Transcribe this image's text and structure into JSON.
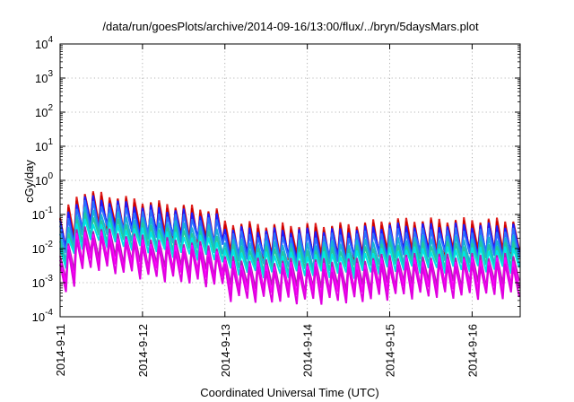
{
  "chart_data": {
    "type": "line",
    "title": "/data/run/goesPlots/archive/2014-09-16/13:00/flux/../bryn/5daysMars.plot",
    "xlabel": "Coordinated Universal Time (UTC)",
    "ylabel": "cGy/day",
    "yscale": "log",
    "ylim": [
      0.0001,
      10000
    ],
    "xlim": [
      "2014-09-11",
      "2014-09-16 14:00"
    ],
    "x_ticks": [
      "2014-9-11",
      "2014-9-12",
      "2014-9-13",
      "2014-9-14",
      "2014-9-15",
      "2014-9-16"
    ],
    "y_ticks": [
      {
        "value": 0.0001,
        "base": "10",
        "exp": "-4"
      },
      {
        "value": 0.001,
        "base": "10",
        "exp": "-3"
      },
      {
        "value": 0.01,
        "base": "10",
        "exp": "-2"
      },
      {
        "value": 0.1,
        "base": "10",
        "exp": "-1"
      },
      {
        "value": 1,
        "base": "10",
        "exp": "0"
      },
      {
        "value": 10,
        "base": "10",
        "exp": "1"
      },
      {
        "value": 100,
        "base": "10",
        "exp": "2"
      },
      {
        "value": 1000,
        "base": "10",
        "exp": "3"
      },
      {
        "value": 10000,
        "base": "10",
        "exp": "4"
      }
    ],
    "grid": true,
    "pattern": {
      "cycles_per_day": 10,
      "envelope_peak_anchors": [
        {
          "t": "2014-09-11 00:00",
          "v": 0.08
        },
        {
          "t": "2014-09-11 06:00",
          "v": 0.5
        },
        {
          "t": "2014-09-11 12:00",
          "v": 0.4
        },
        {
          "t": "2014-09-12 00:00",
          "v": 0.25
        },
        {
          "t": "2014-09-12 12:00",
          "v": 0.18
        },
        {
          "t": "2014-09-12 22:00",
          "v": 0.13
        },
        {
          "t": "2014-09-13 00:00",
          "v": 0.06
        },
        {
          "t": "2014-09-13 12:00",
          "v": 0.05
        },
        {
          "t": "2014-09-14 12:00",
          "v": 0.05
        },
        {
          "t": "2014-09-15 00:00",
          "v": 0.07
        },
        {
          "t": "2014-09-16 14:00",
          "v": 0.07
        }
      ]
    },
    "series": [
      {
        "color": "#e0201c",
        "peak_factor": 1.0,
        "trough_factor": 0.11
      },
      {
        "color": "#cc0000",
        "peak_factor": 0.85,
        "trough_factor": 0.1
      },
      {
        "color": "#1a1aff",
        "peak_factor": 0.7,
        "trough_factor": 0.1
      },
      {
        "color": "#2b6fff",
        "peak_factor": 0.5,
        "trough_factor": 0.09
      },
      {
        "color": "#19b0d8",
        "peak_factor": 0.3,
        "trough_factor": 0.06
      },
      {
        "color": "#22c8a0",
        "peak_factor": 0.2,
        "trough_factor": 0.045
      },
      {
        "color": "#00e5e5",
        "peak_factor": 0.14,
        "trough_factor": 0.035
      },
      {
        "color": "#b020b0",
        "peak_factor": 0.09,
        "trough_factor": 0.013
      },
      {
        "color": "#ff00ff",
        "peak_factor": 0.07,
        "trough_factor": 0.009
      },
      {
        "color": "#e000e0",
        "peak_factor": 0.05,
        "trough_factor": 0.006
      }
    ]
  }
}
